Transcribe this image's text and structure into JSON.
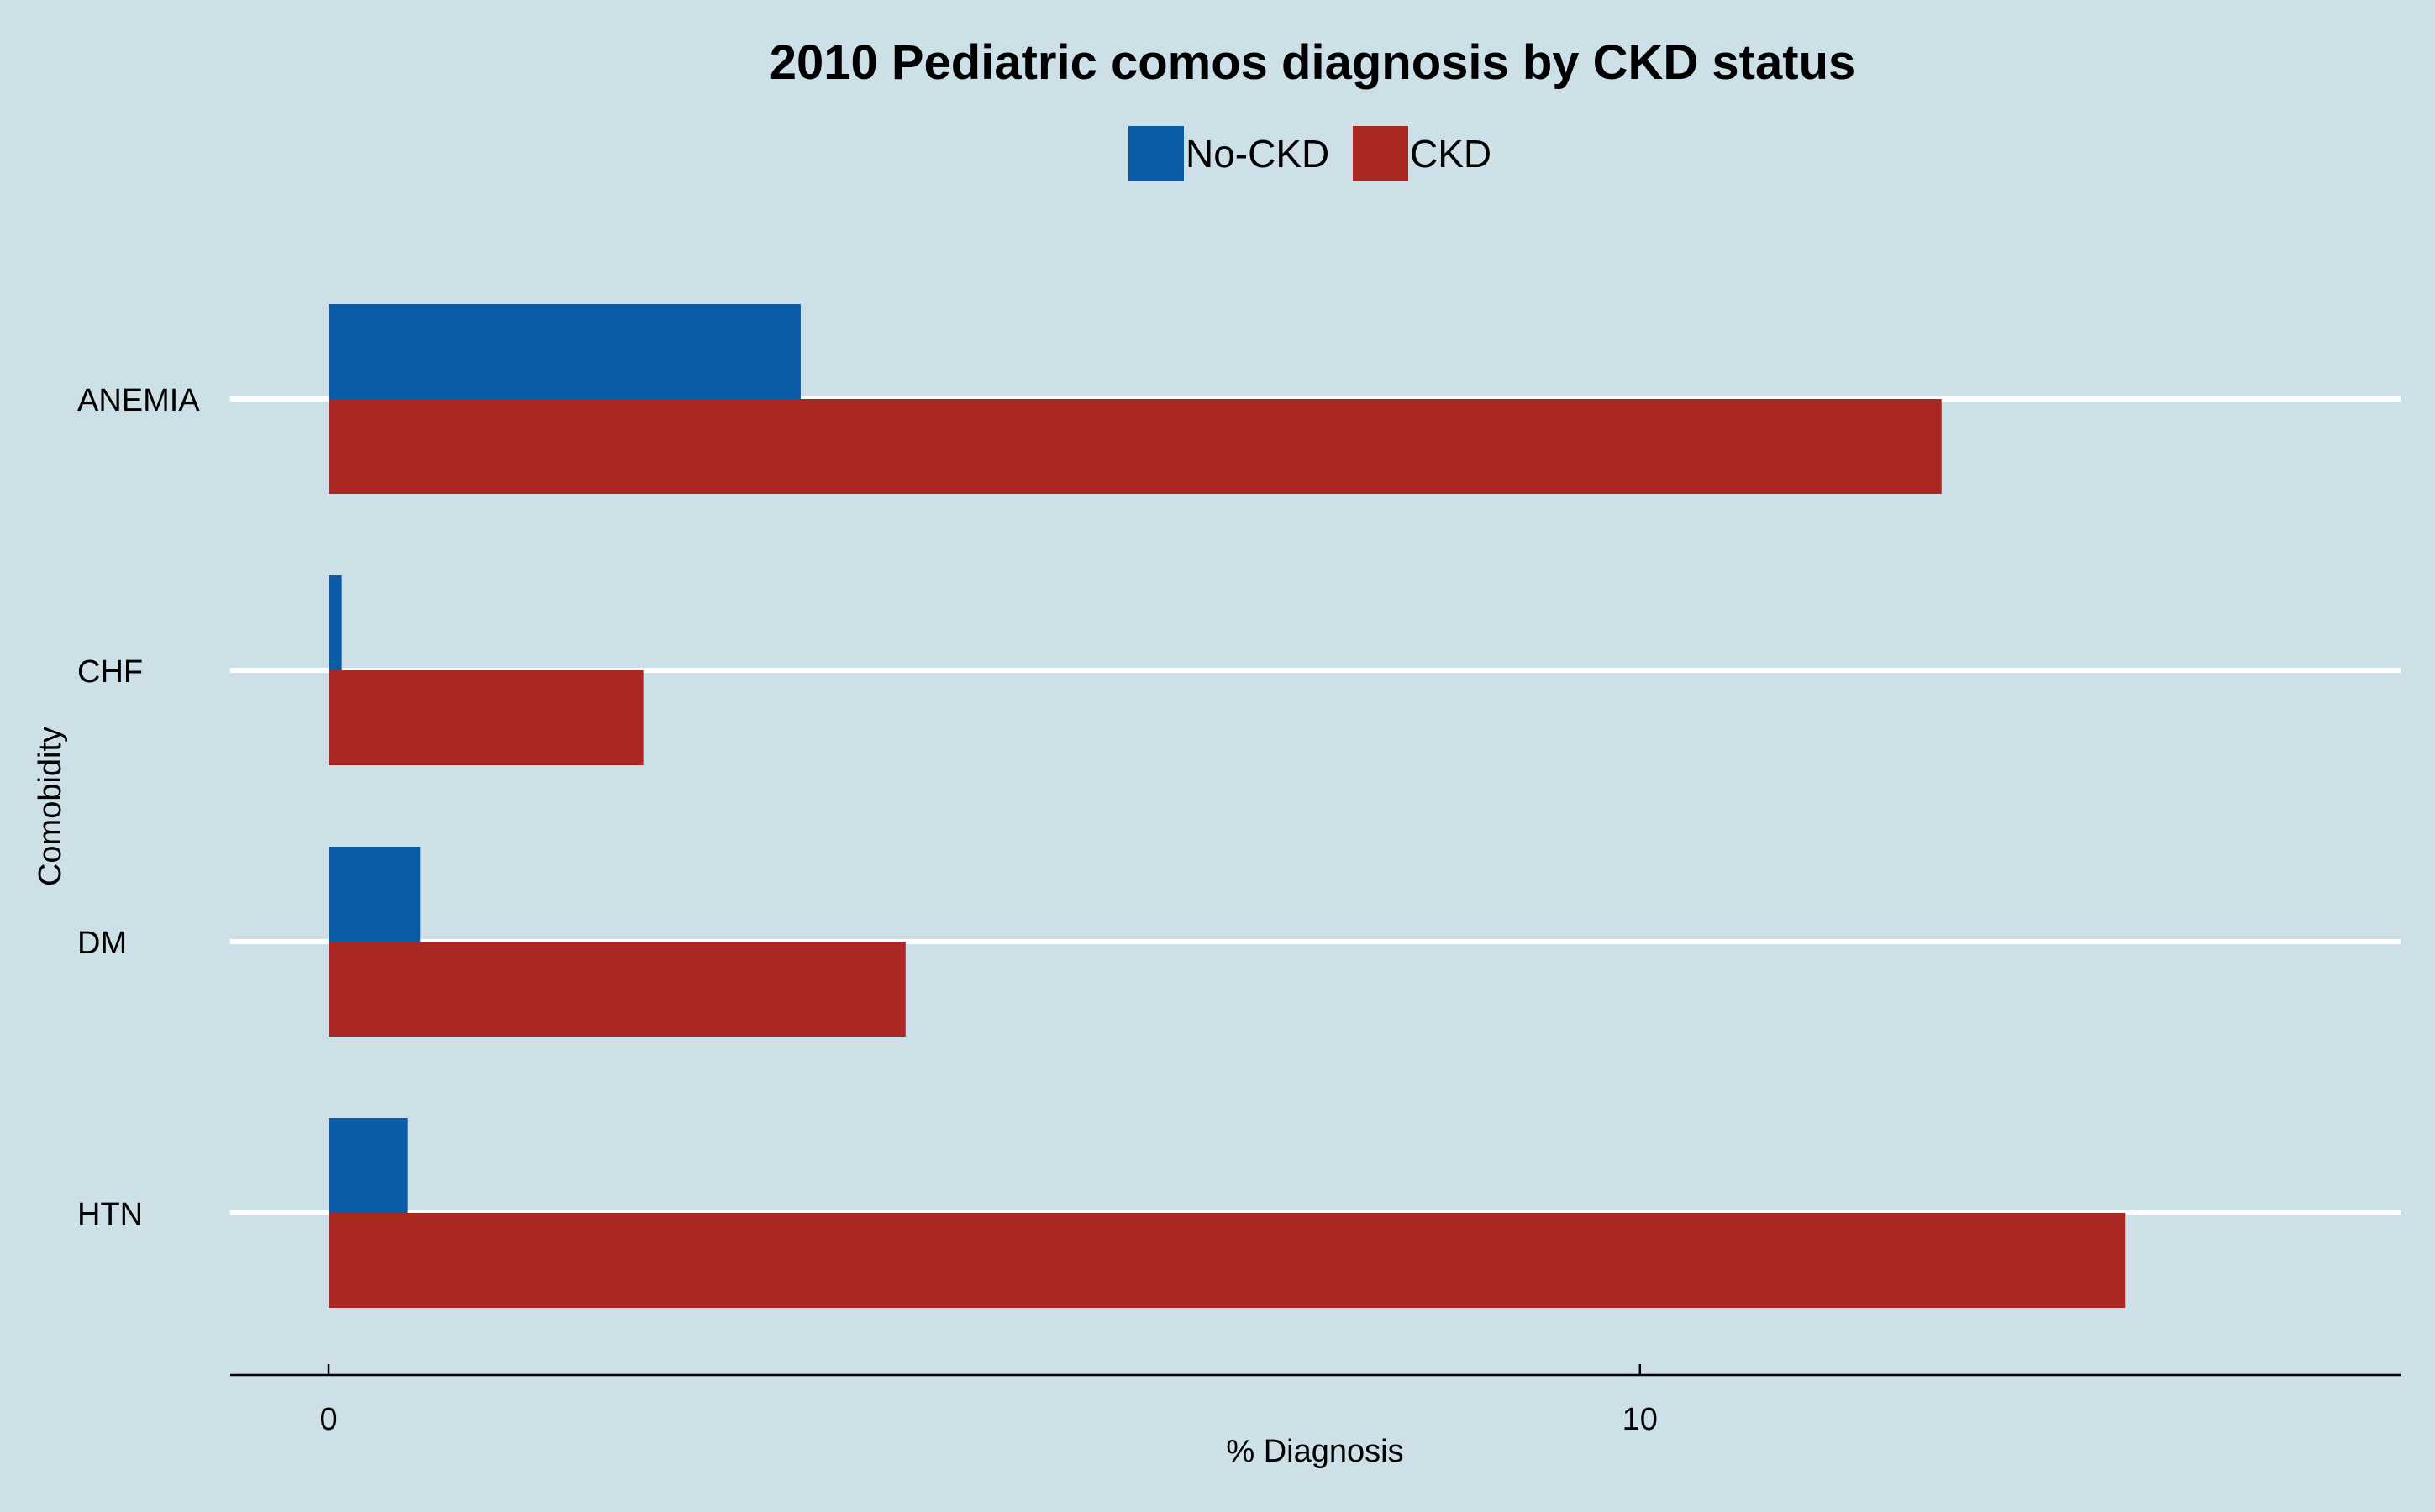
{
  "chart_data": {
    "type": "bar",
    "orientation": "horizontal",
    "title": "2010 Pediatric comos diagnosis by CKD status",
    "xlabel": "% Diagnosis",
    "ylabel": "Comobidity",
    "categories": [
      "ANEMIA",
      "CHF",
      "DM",
      "HTN"
    ],
    "series": [
      {
        "name": "No-CKD",
        "color": "#0b5ca6",
        "values": [
          3.6,
          0.1,
          0.7,
          0.6
        ]
      },
      {
        "name": "CKD",
        "color": "#aa2822",
        "values": [
          12.3,
          2.4,
          4.4,
          13.7
        ]
      }
    ],
    "xlim": [
      -0.75,
      15.8
    ],
    "xticks": [
      0,
      10
    ],
    "grid": "horizontal",
    "legend": "top-center"
  }
}
